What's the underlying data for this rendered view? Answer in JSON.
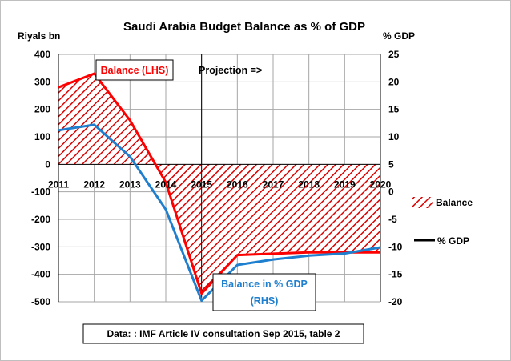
{
  "chart_data": {
    "type": "area",
    "title": "Saudi Arabia Budget Balance as % of GDP",
    "y_left_label": "Riyals bn",
    "y_right_label": "% GDP",
    "x": [
      "2011",
      "2012",
      "2013",
      "2014",
      "2015",
      "2016",
      "2017",
      "2018",
      "2019",
      "2020"
    ],
    "y_left_ticks": [
      "400",
      "300",
      "200",
      "100",
      "0",
      "-100",
      "-200",
      "-300",
      "-400",
      "-500"
    ],
    "y_right_ticks": [
      "25",
      "20",
      "15",
      "10",
      "5",
      "0",
      "-5",
      "-10",
      "-15",
      "-20"
    ],
    "y_left_range": [
      -500,
      400
    ],
    "y_right_range": [
      -20,
      25
    ],
    "grid": true,
    "legend_position": "right",
    "series": [
      {
        "name": "Balance",
        "axis": "left",
        "style": "hatched area",
        "color": "#ff0000",
        "values": [
          280,
          330,
          160,
          -65,
          -470,
          -330,
          -325,
          -320,
          -320,
          -320
        ]
      },
      {
        "name": "% GDP",
        "axis": "right",
        "style": "line",
        "color": "#1f7fcf",
        "values": [
          11.2,
          12.2,
          6.4,
          -3.2,
          -19.8,
          -13.3,
          -12.3,
          -11.6,
          -11.2,
          -10.1
        ]
      }
    ],
    "annotations": {
      "balance_label": "Balance (LHS)",
      "projection_label": "Projection =>",
      "gdp_label_line1": "Balance in % GDP",
      "gdp_label_line2": "(RHS)",
      "source_note": "Data: : IMF Article IV consultation Sep 2015, table 2"
    },
    "projection_start": "2015",
    "colors": {
      "balance": "#ff0000",
      "gdp_line": "#1f7fcf",
      "gdp_legend_line": "#000000",
      "gdp_label_text": "#1f7fcf",
      "grid": "#a6a6a6"
    }
  }
}
